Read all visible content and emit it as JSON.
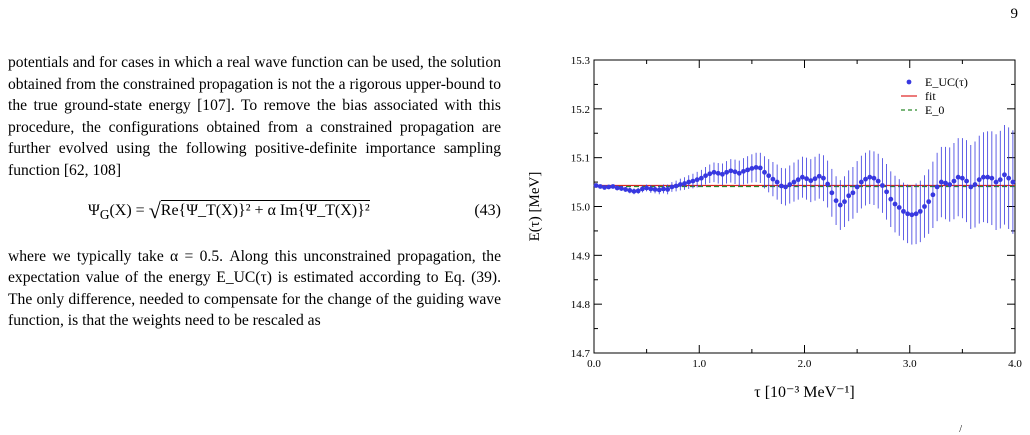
{
  "page_number": "9",
  "body": {
    "paragraph_1": "potentials and for cases in which a real wave function can be used, the solution obtained from the constrained propagation is not the a rigorous upper-bound to the true ground-state energy [107]. To remove the bias associated with this procedure, the configurations obtained from a constrained propagation are further evolved using the following positive-definite importance sampling function [62, 108]",
    "equation_lhs": "Ψ",
    "equation_lhs_sub": "G",
    "equation_lhs_arg": "(X) = ",
    "equation_radicand": "Re{Ψ_T(X)}² + α Im{Ψ_T(X)}²",
    "equation_number": "(43)",
    "paragraph_2": "where we typically take α = 0.5. Along this unconstrained propagation, the expectation value of the energy E_UC(τ) is estimated according to Eq. (39). The only difference, needed to compensate for the change of the guiding wave function, is that the weights need to be rescaled as"
  },
  "chart_data": {
    "type": "scatter",
    "xlabel": "τ  [10⁻³ MeV⁻¹]",
    "ylabel": "E(τ)  [MeV]",
    "xlim": [
      0.0,
      4.0
    ],
    "ylim": [
      14.7,
      15.3
    ],
    "x_ticks": [
      "0.0",
      "1.0",
      "2.0",
      "3.0",
      "4.0"
    ],
    "y_ticks": [
      "14.7",
      "14.8",
      "14.9",
      "15.0",
      "15.1",
      "15.2",
      "15.3"
    ],
    "grid": false,
    "legend_position": "top-right",
    "legend": [
      {
        "label": "E_UC(τ)",
        "color": "#3838e0",
        "style": "point"
      },
      {
        "label": "fit",
        "color": "#e02020",
        "style": "solid"
      },
      {
        "label": "E_0",
        "color": "#2a8a2a",
        "style": "dashed"
      }
    ],
    "fit_value": 15.043,
    "e0_value": 15.041,
    "series": [
      {
        "name": "E_UC(τ)",
        "color": "#3838e0",
        "x": [
          0.02,
          0.06,
          0.1,
          0.14,
          0.18,
          0.22,
          0.26,
          0.3,
          0.34,
          0.38,
          0.42,
          0.46,
          0.5,
          0.54,
          0.58,
          0.62,
          0.66,
          0.7,
          0.74,
          0.78,
          0.82,
          0.86,
          0.9,
          0.94,
          0.98,
          1.02,
          1.06,
          1.1,
          1.14,
          1.18,
          1.22,
          1.26,
          1.3,
          1.34,
          1.38,
          1.42,
          1.46,
          1.5,
          1.54,
          1.58,
          1.62,
          1.66,
          1.7,
          1.74,
          1.78,
          1.82,
          1.86,
          1.9,
          1.94,
          1.98,
          2.02,
          2.06,
          2.1,
          2.14,
          2.18,
          2.22,
          2.26,
          2.3,
          2.34,
          2.38,
          2.42,
          2.46,
          2.5,
          2.54,
          2.58,
          2.62,
          2.66,
          2.7,
          2.74,
          2.78,
          2.82,
          2.86,
          2.9,
          2.94,
          2.98,
          3.02,
          3.06,
          3.1,
          3.14,
          3.18,
          3.22,
          3.26,
          3.3,
          3.34,
          3.38,
          3.42,
          3.46,
          3.5,
          3.54,
          3.58,
          3.62,
          3.66,
          3.7,
          3.74,
          3.78,
          3.82,
          3.86,
          3.9,
          3.94,
          3.98
        ],
        "y": [
          15.043,
          15.041,
          15.039,
          15.04,
          15.041,
          15.038,
          15.037,
          15.035,
          15.033,
          15.031,
          15.032,
          15.036,
          15.038,
          15.036,
          15.035,
          15.034,
          15.036,
          15.035,
          15.04,
          15.042,
          15.045,
          15.047,
          15.05,
          15.052,
          15.055,
          15.058,
          15.063,
          15.067,
          15.07,
          15.068,
          15.066,
          15.07,
          15.073,
          15.071,
          15.068,
          15.072,
          15.075,
          15.078,
          15.08,
          15.079,
          15.07,
          15.063,
          15.056,
          15.05,
          15.042,
          15.04,
          15.045,
          15.05,
          15.055,
          15.06,
          15.057,
          15.053,
          15.057,
          15.062,
          15.058,
          15.046,
          15.028,
          15.012,
          15.003,
          15.01,
          15.022,
          15.028,
          15.04,
          15.05,
          15.056,
          15.06,
          15.058,
          15.052,
          15.043,
          15.03,
          15.015,
          15.005,
          14.998,
          14.99,
          14.985,
          14.983,
          14.985,
          14.99,
          15.0,
          15.01,
          15.024,
          15.04,
          15.05,
          15.048,
          15.045,
          15.052,
          15.06,
          15.058,
          15.052,
          15.04,
          15.045,
          15.055,
          15.06,
          15.06,
          15.058,
          15.05,
          15.055,
          15.065,
          15.058,
          15.05
        ],
        "err": [
          0.003,
          0.003,
          0.004,
          0.004,
          0.004,
          0.005,
          0.005,
          0.005,
          0.006,
          0.006,
          0.006,
          0.007,
          0.007,
          0.008,
          0.008,
          0.009,
          0.009,
          0.01,
          0.01,
          0.011,
          0.012,
          0.013,
          0.014,
          0.015,
          0.016,
          0.017,
          0.018,
          0.019,
          0.02,
          0.021,
          0.022,
          0.023,
          0.024,
          0.025,
          0.026,
          0.027,
          0.028,
          0.029,
          0.03,
          0.031,
          0.033,
          0.034,
          0.035,
          0.036,
          0.037,
          0.038,
          0.039,
          0.04,
          0.041,
          0.042,
          0.043,
          0.044,
          0.045,
          0.046,
          0.047,
          0.048,
          0.049,
          0.05,
          0.051,
          0.052,
          0.052,
          0.053,
          0.053,
          0.054,
          0.054,
          0.055,
          0.055,
          0.056,
          0.056,
          0.057,
          0.057,
          0.058,
          0.058,
          0.059,
          0.06,
          0.061,
          0.062,
          0.063,
          0.064,
          0.066,
          0.068,
          0.07,
          0.072,
          0.074,
          0.076,
          0.078,
          0.08,
          0.082,
          0.084,
          0.086,
          0.088,
          0.09,
          0.092,
          0.094,
          0.096,
          0.098,
          0.1,
          0.102,
          0.104,
          0.106
        ]
      }
    ]
  },
  "footer_mark": "/"
}
